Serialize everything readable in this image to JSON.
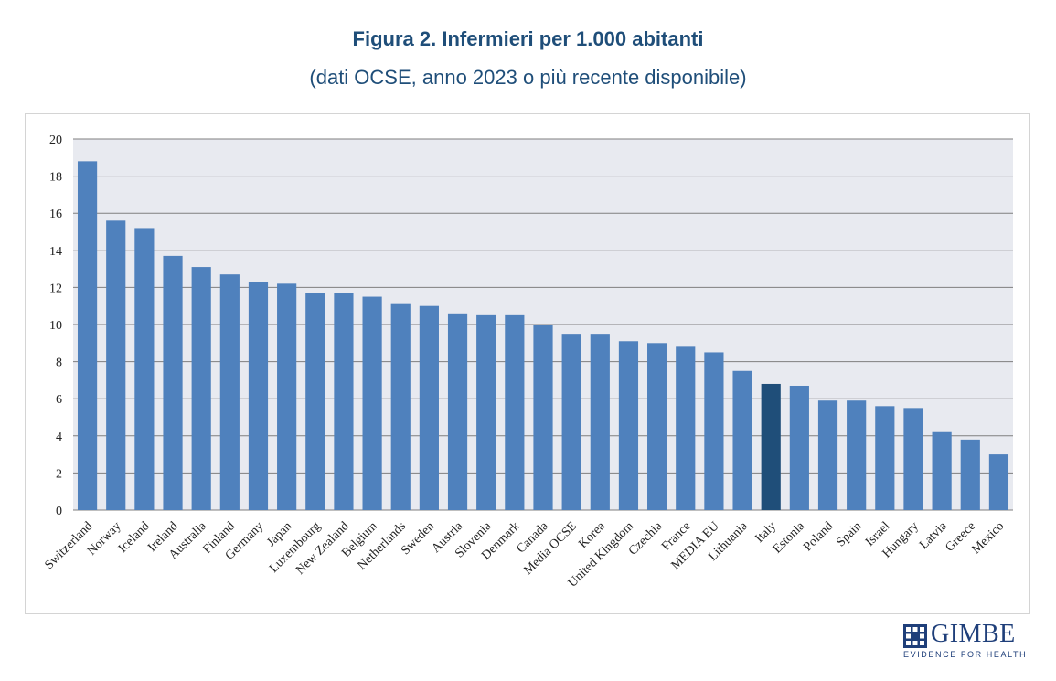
{
  "chart_data": {
    "type": "bar",
    "title": "Figura 2. Infermieri per 1.000 abitanti",
    "subtitle": "(dati OCSE, anno 2023 o più recente disponibile)",
    "categories": [
      "Switzerland",
      "Norway",
      "Iceland",
      "Ireland",
      "Australia",
      "Finland",
      "Germany",
      "Japan",
      "Luxembourg",
      "New Zealand",
      "Belgium",
      "Netherlands",
      "Sweden",
      "Austria",
      "Slovenia",
      "Denmark",
      "Canada",
      "Media OCSE",
      "Korea",
      "United Kingdom",
      "Czechia",
      "France",
      "MEDIA EU",
      "Lithuania",
      "Italy",
      "Estonia",
      "Poland",
      "Spain",
      "Israel",
      "Hungary",
      "Latvia",
      "Greece",
      "Mexico"
    ],
    "values": [
      18.8,
      15.6,
      15.2,
      13.7,
      13.1,
      12.7,
      12.3,
      12.2,
      11.7,
      11.7,
      11.5,
      11.1,
      11.0,
      10.6,
      10.5,
      10.5,
      10.0,
      9.5,
      9.5,
      9.1,
      9.0,
      8.8,
      8.5,
      7.5,
      6.8,
      6.7,
      5.9,
      5.9,
      5.6,
      5.5,
      4.2,
      3.8,
      3.0
    ],
    "highlight": "Italy",
    "colors": {
      "bar": "#4f81bd",
      "highlight": "#1f4e79",
      "plot_bg": "#e8eaf0",
      "grid": "#7f7f7f"
    },
    "ylim": [
      0,
      20
    ],
    "yticks": [
      0,
      2,
      4,
      6,
      8,
      10,
      12,
      14,
      16,
      18,
      20
    ],
    "xlabel": "",
    "ylabel": "",
    "grid": true,
    "legend": "none"
  },
  "logo": {
    "name": "GIMBE",
    "tagline": "EVIDENCE FOR HEALTH"
  }
}
